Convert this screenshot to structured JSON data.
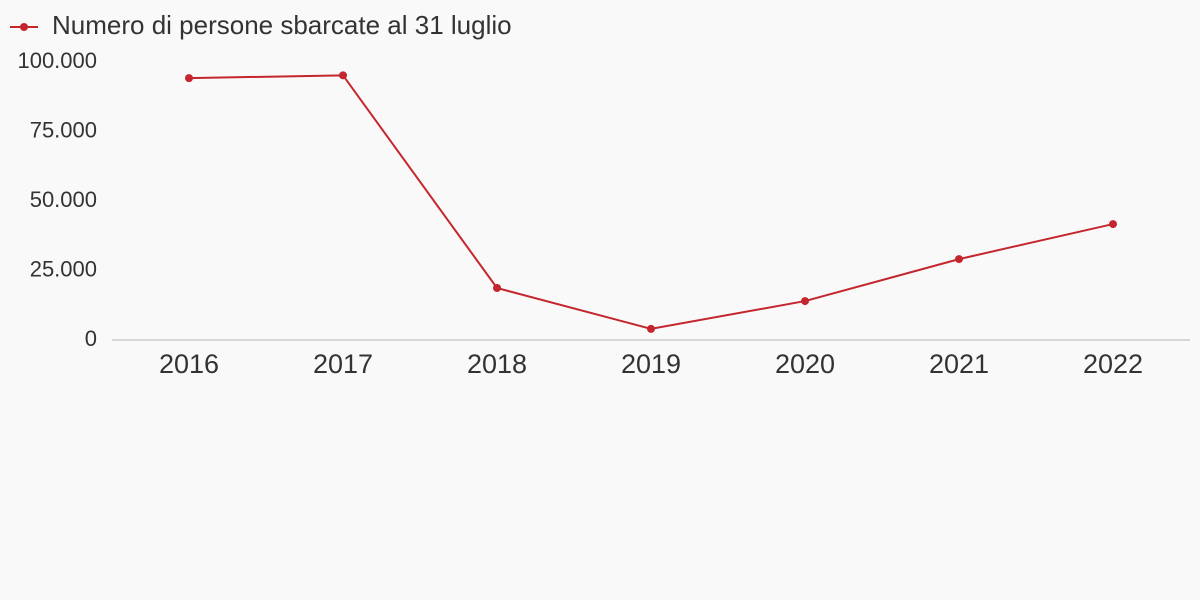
{
  "chart_data": {
    "type": "line",
    "categories": [
      "2016",
      "2017",
      "2018",
      "2019",
      "2020",
      "2021",
      "2022"
    ],
    "series": [
      {
        "name": "Numero di persone sbarcate al 31 luglio",
        "color": "#c4262e",
        "values": [
          94200,
          95200,
          18700,
          4000,
          14000,
          29100,
          41700
        ]
      }
    ],
    "ylim": [
      0,
      100000
    ],
    "yticks": [
      0,
      {
        "value": 25000,
        "label": "25.000"
      },
      {
        "value": 50000,
        "label": "50.000"
      },
      {
        "value": 75000,
        "label": "75.000"
      },
      {
        "value": 100000,
        "label": "100.000"
      }
    ],
    "grid": false
  }
}
